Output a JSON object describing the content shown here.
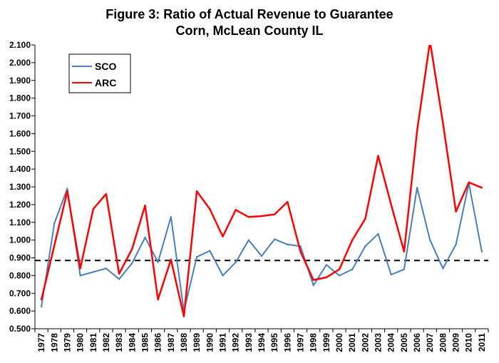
{
  "chart_data": {
    "type": "line",
    "title": "Figure 3: Ratio of Actual Revenue to Guarantee",
    "subtitle": "Corn, McLean County IL",
    "x": [
      "1977",
      "1978",
      "1979",
      "1980",
      "1981",
      "1982",
      "1983",
      "1984",
      "1985",
      "1986",
      "1987",
      "1988",
      "1989",
      "1990",
      "1991",
      "1992",
      "1993",
      "1994",
      "1995",
      "1996",
      "1997",
      "1998",
      "1999",
      "2000",
      "2001",
      "2002",
      "2003",
      "2004",
      "2005",
      "2006",
      "2007",
      "2008",
      "2009",
      "2010",
      "2011"
    ],
    "ylim": [
      0.5,
      2.1
    ],
    "yticks": [
      "0.500",
      "0.600",
      "0.700",
      "0.800",
      "0.900",
      "1.000",
      "1.100",
      "1.200",
      "1.300",
      "1.400",
      "1.500",
      "1.600",
      "1.700",
      "1.800",
      "1.900",
      "2.000",
      "2.100"
    ],
    "reference_line": {
      "value": 0.885,
      "style": "dashed",
      "color": "#000000"
    },
    "series": [
      {
        "name": "SCO",
        "color": "#4a7ebb",
        "values": [
          0.625,
          1.095,
          1.29,
          0.8,
          0.82,
          0.84,
          0.78,
          0.87,
          1.015,
          0.875,
          1.13,
          0.6,
          0.905,
          0.94,
          0.8,
          0.875,
          1.0,
          0.91,
          1.005,
          0.975,
          0.965,
          0.745,
          0.86,
          0.8,
          0.835,
          0.965,
          1.035,
          0.805,
          0.835,
          1.295,
          1.0,
          0.84,
          0.975,
          1.32,
          0.935
        ]
      },
      {
        "name": "ARC",
        "color": "#ff0000",
        "values": [
          0.665,
          0.97,
          1.275,
          0.84,
          1.175,
          1.26,
          0.81,
          0.95,
          1.195,
          0.665,
          0.89,
          0.57,
          1.275,
          1.175,
          1.02,
          1.17,
          1.13,
          1.135,
          1.145,
          1.215,
          0.935,
          0.775,
          0.79,
          0.835,
          1.0,
          1.12,
          1.475,
          1.2,
          0.935,
          1.615,
          2.12,
          1.66,
          1.16,
          1.325,
          1.295
        ]
      }
    ],
    "legend": {
      "position": "top-left",
      "entries": [
        "SCO",
        "ARC"
      ]
    },
    "grid": false
  }
}
